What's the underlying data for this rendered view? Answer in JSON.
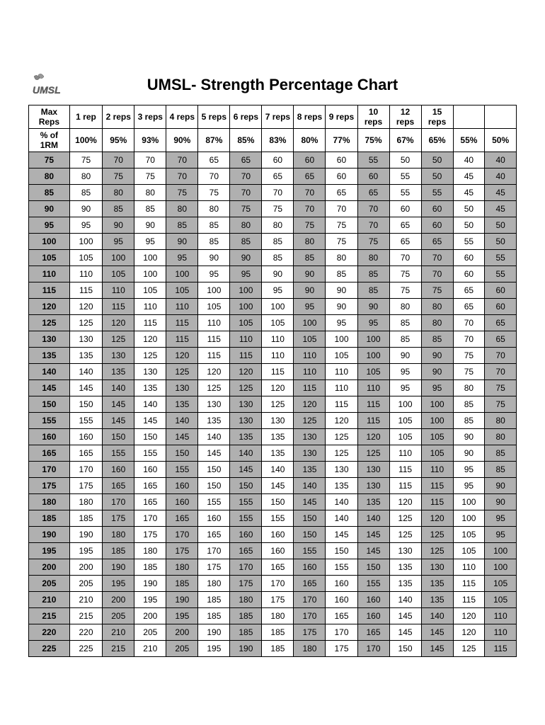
{
  "title": "UMSL- Strength Percentage Chart",
  "logo_text": "UMSL",
  "table": {
    "header_row1_label": "Max Reps",
    "header_row2_label": "% of 1RM",
    "reps": [
      "1 rep",
      "2 reps",
      "3 reps",
      "4 reps",
      "5 reps",
      "6 reps",
      "7 reps",
      "8 reps",
      "9 reps",
      "10 reps",
      "12 reps",
      "15 reps",
      "",
      ""
    ],
    "percents": [
      "100%",
      "95%",
      "93%",
      "90%",
      "87%",
      "85%",
      "83%",
      "80%",
      "77%",
      "75%",
      "67%",
      "65%",
      "55%",
      "50%"
    ],
    "rows": [
      {
        "w": "75",
        "v": [
          "75",
          "70",
          "70",
          "70",
          "65",
          "65",
          "60",
          "60",
          "60",
          "55",
          "50",
          "50",
          "40",
          "40"
        ]
      },
      {
        "w": "80",
        "v": [
          "80",
          "75",
          "75",
          "70",
          "70",
          "70",
          "65",
          "65",
          "60",
          "60",
          "55",
          "50",
          "45",
          "40"
        ]
      },
      {
        "w": "85",
        "v": [
          "85",
          "80",
          "80",
          "75",
          "75",
          "70",
          "70",
          "70",
          "65",
          "65",
          "55",
          "55",
          "45",
          "45"
        ]
      },
      {
        "w": "90",
        "v": [
          "90",
          "85",
          "85",
          "80",
          "80",
          "75",
          "75",
          "70",
          "70",
          "70",
          "60",
          "60",
          "50",
          "45"
        ]
      },
      {
        "w": "95",
        "v": [
          "95",
          "90",
          "90",
          "85",
          "85",
          "80",
          "80",
          "75",
          "75",
          "70",
          "65",
          "60",
          "50",
          "50"
        ]
      },
      {
        "w": "100",
        "v": [
          "100",
          "95",
          "95",
          "90",
          "85",
          "85",
          "85",
          "80",
          "75",
          "75",
          "65",
          "65",
          "55",
          "50"
        ]
      },
      {
        "w": "105",
        "v": [
          "105",
          "100",
          "100",
          "95",
          "90",
          "90",
          "85",
          "85",
          "80",
          "80",
          "70",
          "70",
          "60",
          "55"
        ]
      },
      {
        "w": "110",
        "v": [
          "110",
          "105",
          "100",
          "100",
          "95",
          "95",
          "90",
          "90",
          "85",
          "85",
          "75",
          "70",
          "60",
          "55"
        ]
      },
      {
        "w": "115",
        "v": [
          "115",
          "110",
          "105",
          "105",
          "100",
          "100",
          "95",
          "90",
          "90",
          "85",
          "75",
          "75",
          "65",
          "60"
        ]
      },
      {
        "w": "120",
        "v": [
          "120",
          "115",
          "110",
          "110",
          "105",
          "100",
          "100",
          "95",
          "90",
          "90",
          "80",
          "80",
          "65",
          "60"
        ]
      },
      {
        "w": "125",
        "v": [
          "125",
          "120",
          "115",
          "115",
          "110",
          "105",
          "105",
          "100",
          "95",
          "95",
          "85",
          "80",
          "70",
          "65"
        ]
      },
      {
        "w": "130",
        "v": [
          "130",
          "125",
          "120",
          "115",
          "115",
          "110",
          "110",
          "105",
          "100",
          "100",
          "85",
          "85",
          "70",
          "65"
        ]
      },
      {
        "w": "135",
        "v": [
          "135",
          "130",
          "125",
          "120",
          "115",
          "115",
          "110",
          "110",
          "105",
          "100",
          "90",
          "90",
          "75",
          "70"
        ]
      },
      {
        "w": "140",
        "v": [
          "140",
          "135",
          "130",
          "125",
          "120",
          "120",
          "115",
          "110",
          "110",
          "105",
          "95",
          "90",
          "75",
          "70"
        ]
      },
      {
        "w": "145",
        "v": [
          "145",
          "140",
          "135",
          "130",
          "125",
          "125",
          "120",
          "115",
          "110",
          "110",
          "95",
          "95",
          "80",
          "75"
        ]
      },
      {
        "w": "150",
        "v": [
          "150",
          "145",
          "140",
          "135",
          "130",
          "130",
          "125",
          "120",
          "115",
          "115",
          "100",
          "100",
          "85",
          "75"
        ]
      },
      {
        "w": "155",
        "v": [
          "155",
          "145",
          "145",
          "140",
          "135",
          "130",
          "130",
          "125",
          "120",
          "115",
          "105",
          "100",
          "85",
          "80"
        ]
      },
      {
        "w": "160",
        "v": [
          "160",
          "150",
          "150",
          "145",
          "140",
          "135",
          "135",
          "130",
          "125",
          "120",
          "105",
          "105",
          "90",
          "80"
        ]
      },
      {
        "w": "165",
        "v": [
          "165",
          "155",
          "155",
          "150",
          "145",
          "140",
          "135",
          "130",
          "125",
          "125",
          "110",
          "105",
          "90",
          "85"
        ]
      },
      {
        "w": "170",
        "v": [
          "170",
          "160",
          "160",
          "155",
          "150",
          "145",
          "140",
          "135",
          "130",
          "130",
          "115",
          "110",
          "95",
          "85"
        ]
      },
      {
        "w": "175",
        "v": [
          "175",
          "165",
          "165",
          "160",
          "150",
          "150",
          "145",
          "140",
          "135",
          "130",
          "115",
          "115",
          "95",
          "90"
        ]
      },
      {
        "w": "180",
        "v": [
          "180",
          "170",
          "165",
          "160",
          "155",
          "155",
          "150",
          "145",
          "140",
          "135",
          "120",
          "115",
          "100",
          "90"
        ]
      },
      {
        "w": "185",
        "v": [
          "185",
          "175",
          "170",
          "165",
          "160",
          "155",
          "155",
          "150",
          "140",
          "140",
          "125",
          "120",
          "100",
          "95"
        ]
      },
      {
        "w": "190",
        "v": [
          "190",
          "180",
          "175",
          "170",
          "165",
          "160",
          "160",
          "150",
          "145",
          "145",
          "125",
          "125",
          "105",
          "95"
        ]
      },
      {
        "w": "195",
        "v": [
          "195",
          "185",
          "180",
          "175",
          "170",
          "165",
          "160",
          "155",
          "150",
          "145",
          "130",
          "125",
          "105",
          "100"
        ]
      },
      {
        "w": "200",
        "v": [
          "200",
          "190",
          "185",
          "180",
          "175",
          "170",
          "165",
          "160",
          "155",
          "150",
          "135",
          "130",
          "110",
          "100"
        ]
      },
      {
        "w": "205",
        "v": [
          "205",
          "195",
          "190",
          "185",
          "180",
          "175",
          "170",
          "165",
          "160",
          "155",
          "135",
          "135",
          "115",
          "105"
        ]
      },
      {
        "w": "210",
        "v": [
          "210",
          "200",
          "195",
          "190",
          "185",
          "180",
          "175",
          "170",
          "160",
          "160",
          "140",
          "135",
          "115",
          "105"
        ]
      },
      {
        "w": "215",
        "v": [
          "215",
          "205",
          "200",
          "195",
          "185",
          "185",
          "180",
          "170",
          "165",
          "160",
          "145",
          "140",
          "120",
          "110"
        ]
      },
      {
        "w": "220",
        "v": [
          "220",
          "210",
          "205",
          "200",
          "190",
          "185",
          "185",
          "175",
          "170",
          "165",
          "145",
          "145",
          "120",
          "110"
        ]
      },
      {
        "w": "225",
        "v": [
          "225",
          "215",
          "210",
          "205",
          "195",
          "190",
          "185",
          "180",
          "175",
          "170",
          "150",
          "145",
          "125",
          "115"
        ]
      }
    ],
    "shade_cols": [
      0,
      2,
      4,
      6,
      8,
      10,
      12,
      14
    ],
    "colors": {
      "border": "#000000",
      "shade": "#b0b0b0",
      "bg": "#ffffff",
      "text": "#000000"
    }
  }
}
